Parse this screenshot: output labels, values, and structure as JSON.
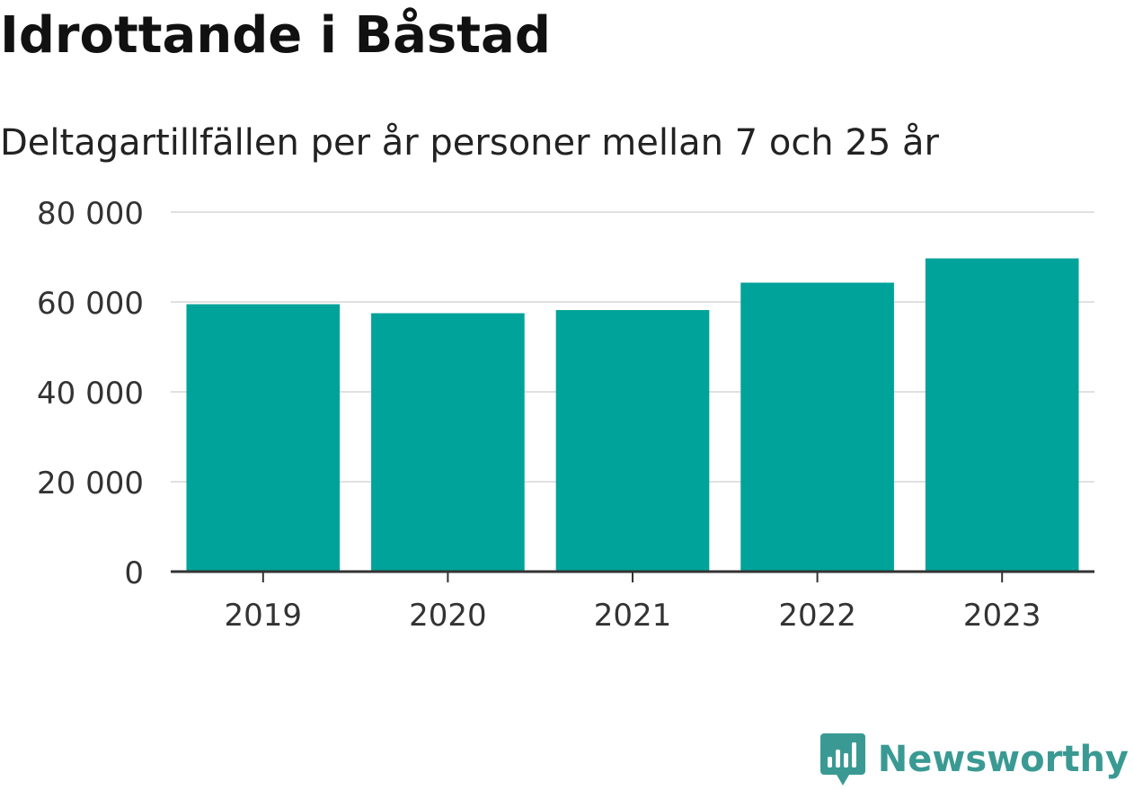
{
  "chart_data": {
    "type": "bar",
    "title": "Idrottande i Båstad",
    "subtitle": "Deltagartillfällen per år personer mellan 7 och 25 år",
    "categories": [
      "2019",
      "2020",
      "2021",
      "2022",
      "2023"
    ],
    "values": [
      59500,
      57500,
      58200,
      64300,
      69700
    ],
    "ylim": [
      0,
      80000
    ],
    "yticks": [
      0,
      20000,
      40000,
      60000,
      80000
    ],
    "ytick_labels": [
      "0",
      "20 000",
      "40 000",
      "60 000",
      "80 000"
    ],
    "grid": true,
    "legend": "none",
    "bar_color": "#00a39a",
    "grid_color": "#e0e0e0",
    "axis_color": "#333333"
  },
  "brand": {
    "name": "Newsworthy",
    "icon": "newsworthy-logo-icon",
    "color": "#3a9a93"
  }
}
